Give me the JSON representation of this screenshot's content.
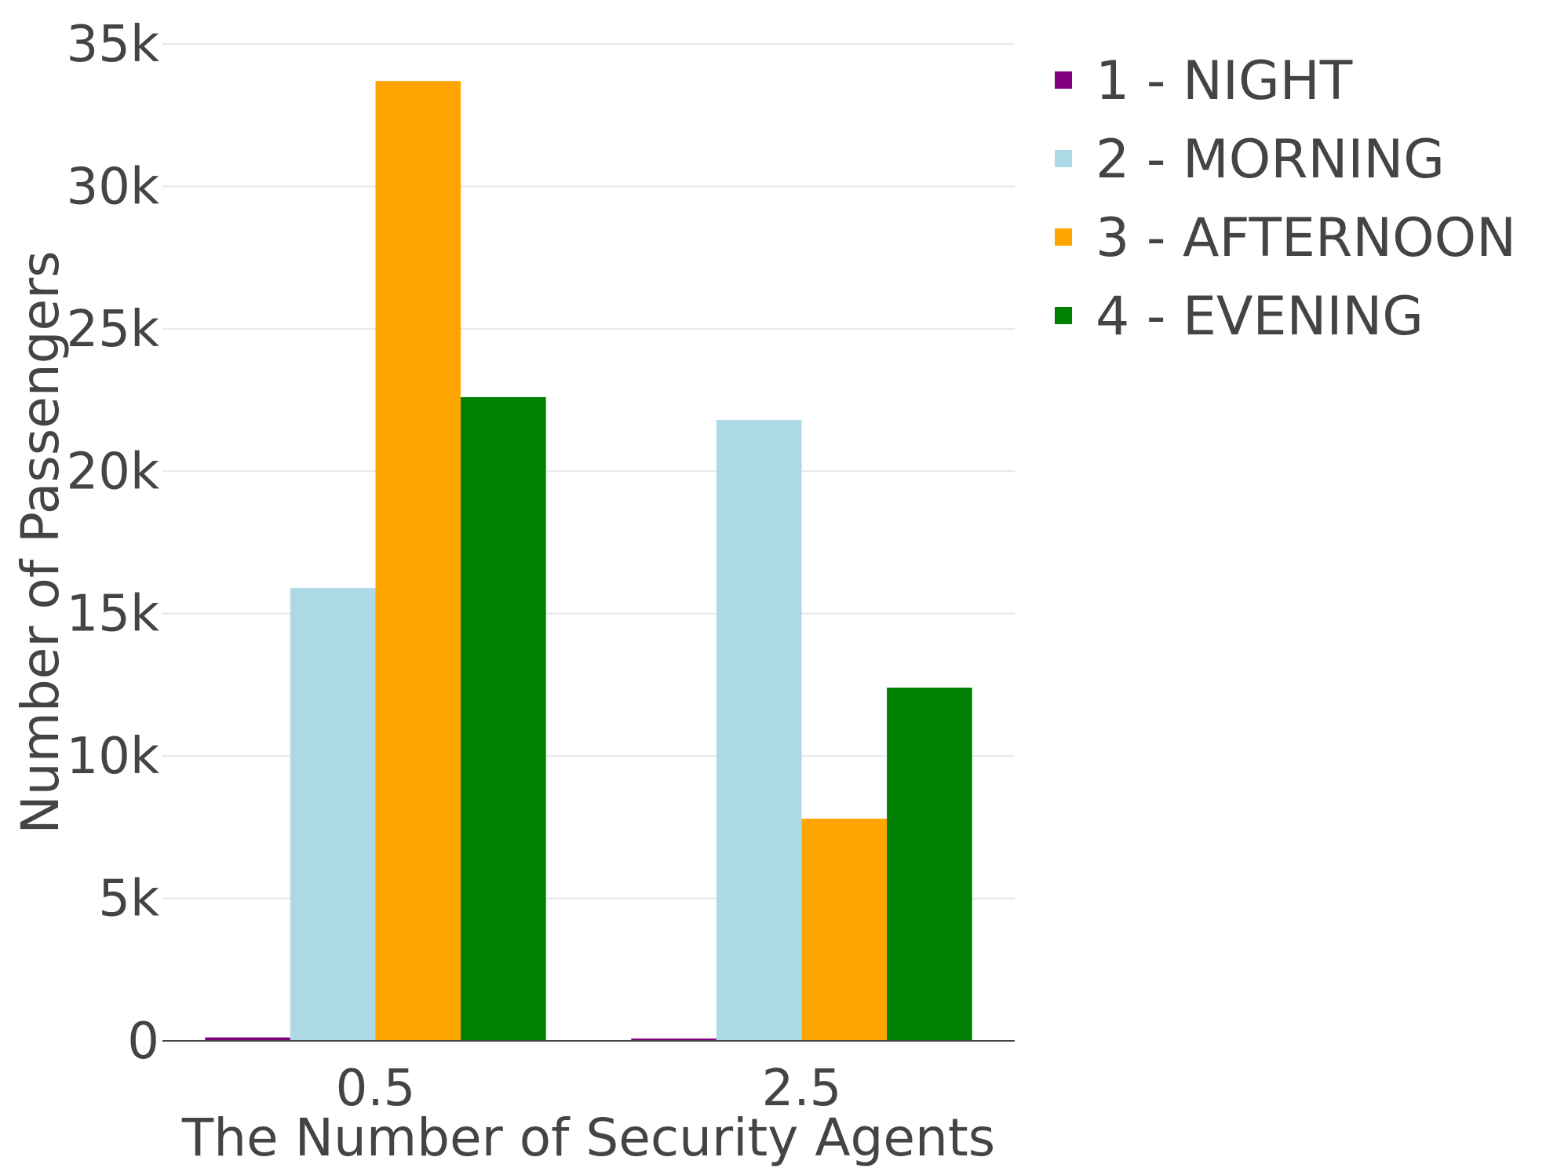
{
  "chart_data": {
    "type": "bar",
    "title": "",
    "xlabel": "The Number of Security Agents",
    "ylabel": "Number of Passengers",
    "categories": [
      "0.5",
      "2.5"
    ],
    "ylim": [
      0,
      35000
    ],
    "yticks": [
      0,
      5000,
      10000,
      15000,
      20000,
      25000,
      30000,
      35000
    ],
    "ytick_labels": [
      "0",
      "5k",
      "10k",
      "15k",
      "20k",
      "25k",
      "30k",
      "35k"
    ],
    "grid": true,
    "legend_position": "top-right",
    "series": [
      {
        "name": "1 - NIGHT",
        "color": "#800080",
        "values": [
          120,
          80
        ]
      },
      {
        "name": "2 - MORNING",
        "color": "#add8e6",
        "values": [
          15900,
          21800
        ]
      },
      {
        "name": "3 - AFTERNOON",
        "color": "#ffa500",
        "values": [
          33700,
          7800
        ]
      },
      {
        "name": "4 - EVENING",
        "color": "#008000",
        "values": [
          22600,
          12400
        ]
      }
    ]
  }
}
